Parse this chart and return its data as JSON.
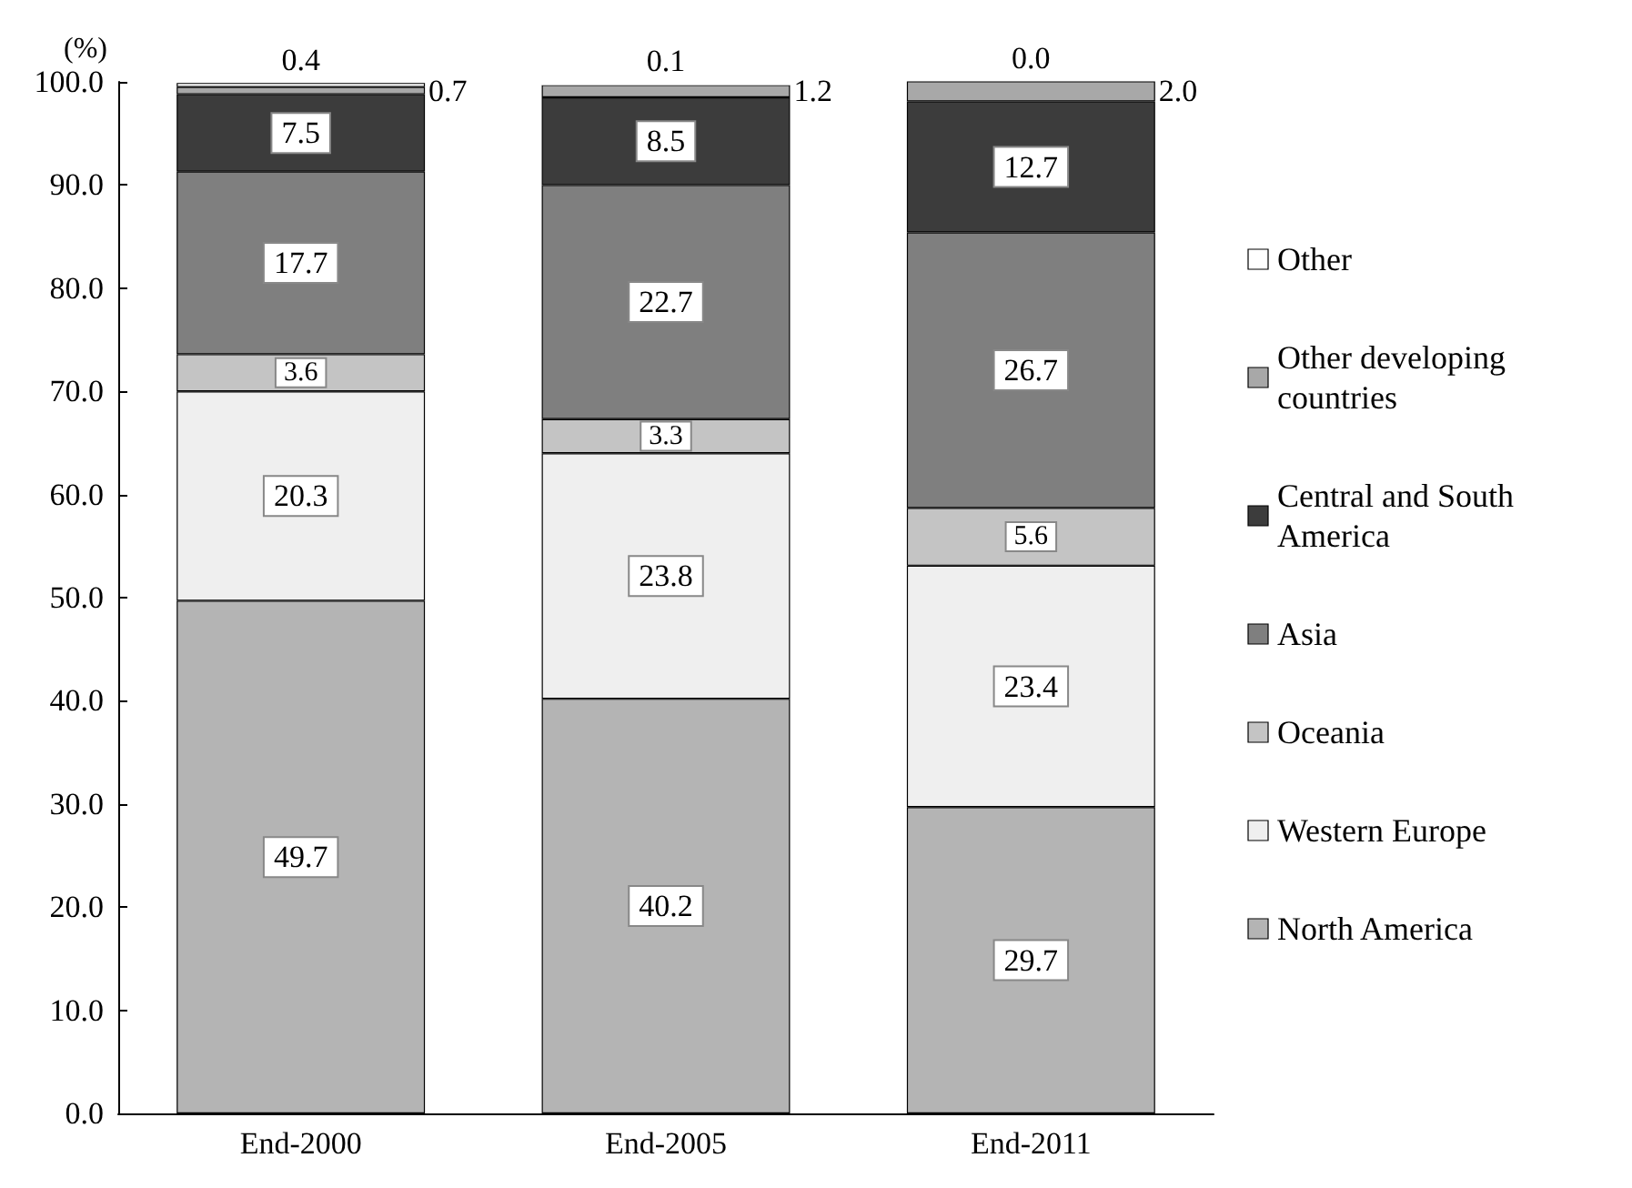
{
  "chart_data": {
    "type": "bar",
    "stacked": true,
    "ylabel": "(%)",
    "categories": [
      "End-2000",
      "End-2005",
      "End-2011"
    ],
    "series": [
      {
        "name": "North America",
        "color": "#b4b4b4",
        "values": [
          49.7,
          40.2,
          29.7
        ],
        "value_labels": [
          "49.7",
          "40.2",
          "29.7"
        ]
      },
      {
        "name": "Western Europe",
        "color": "#efefef",
        "values": [
          20.3,
          23.8,
          23.4
        ],
        "value_labels": [
          "20.3",
          "23.8",
          "23.4"
        ]
      },
      {
        "name": "Oceania",
        "color": "#c4c4c4",
        "values": [
          3.6,
          3.3,
          5.6
        ],
        "value_labels": [
          "3.6",
          "3.3",
          "5.6"
        ]
      },
      {
        "name": "Asia",
        "color": "#7f7f7f",
        "values": [
          17.7,
          22.7,
          26.7
        ],
        "value_labels": [
          "17.7",
          "22.7",
          "26.7"
        ]
      },
      {
        "name": "Central and South America",
        "color": "#3c3c3c",
        "values": [
          7.5,
          8.5,
          12.7
        ],
        "value_labels": [
          "7.5",
          "8.5",
          "12.7"
        ]
      },
      {
        "name": "Other developing countries",
        "color": "#a8a8a8",
        "values": [
          0.7,
          1.2,
          2.0
        ],
        "value_labels": [
          "0.7",
          "1.2",
          "2.0"
        ]
      },
      {
        "name": "Other",
        "color": "#ffffff",
        "values": [
          0.4,
          0.1,
          0.0
        ],
        "value_labels": [
          "0.4",
          "0.1",
          "0.0"
        ]
      }
    ],
    "ylim": [
      0,
      100
    ],
    "yticks": [
      {
        "value": 0,
        "label": "0.0"
      },
      {
        "value": 10,
        "label": "10.0"
      },
      {
        "value": 20,
        "label": "20.0"
      },
      {
        "value": 30,
        "label": "30.0"
      },
      {
        "value": 40,
        "label": "40.0"
      },
      {
        "value": 50,
        "label": "50.0"
      },
      {
        "value": 60,
        "label": "60.0"
      },
      {
        "value": 70,
        "label": "70.0"
      },
      {
        "value": 80,
        "label": "80.0"
      },
      {
        "value": 90,
        "label": "90.0"
      },
      {
        "value": 100,
        "label": "100.0"
      }
    ],
    "grid": false,
    "legend": "right"
  }
}
